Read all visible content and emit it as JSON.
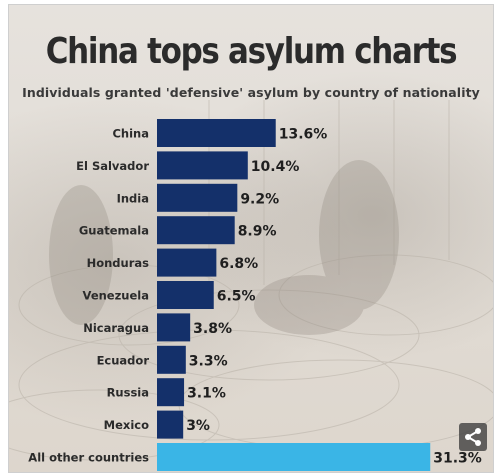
{
  "chart_data": {
    "type": "bar",
    "orientation": "horizontal",
    "title": "China tops asylum charts",
    "subtitle": "Individuals granted 'defensive' asylum by country of nationality",
    "categories": [
      "China",
      "El Salvador",
      "India",
      "Guatemala",
      "Honduras",
      "Venezuela",
      "Nicaragua",
      "Ecuador",
      "Russia",
      "Mexico",
      "All other countries"
    ],
    "values": [
      13.6,
      10.4,
      9.2,
      8.9,
      6.8,
      6.5,
      3.8,
      3.3,
      3.1,
      3.0,
      31.3
    ],
    "value_labels": [
      "13.6%",
      "10.4%",
      "9.2%",
      "8.9%",
      "6.8%",
      "6.5%",
      "3.8%",
      "3.3%",
      "3.1%",
      "3%",
      "31.3%"
    ],
    "unit": "%",
    "colors": {
      "bar": "#14306a",
      "highlight_bar": "#3ab5e6",
      "text": "#2b2b2b"
    },
    "highlight_index": 10,
    "grid": false,
    "legend": "none"
  },
  "icons": {
    "share": "share-icon"
  }
}
